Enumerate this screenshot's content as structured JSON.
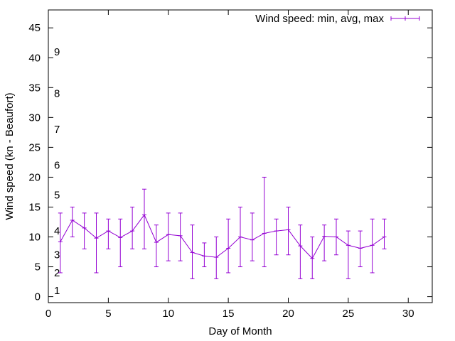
{
  "chart_data": {
    "type": "line",
    "xlabel": "Day of Month",
    "ylabel": "Wind speed (kn - Beaufort)",
    "xlim": [
      0,
      32
    ],
    "ylim": [
      -1,
      48
    ],
    "xticks": [
      0,
      5,
      10,
      15,
      20,
      25,
      30
    ],
    "yticks": [
      0,
      5,
      10,
      15,
      20,
      25,
      30,
      35,
      40,
      45
    ],
    "beaufort_labels": [
      {
        "label": "1",
        "y": 1
      },
      {
        "label": "2",
        "y": 4
      },
      {
        "label": "3",
        "y": 7
      },
      {
        "label": "4",
        "y": 11
      },
      {
        "label": "5",
        "y": 17
      },
      {
        "label": "6",
        "y": 22
      },
      {
        "label": "7",
        "y": 28
      },
      {
        "label": "8",
        "y": 34
      },
      {
        "label": "9",
        "y": 41
      }
    ],
    "legend_position": "top-right",
    "colors": {
      "series": "#9400d3",
      "axis": "#000000"
    },
    "series": [
      {
        "name": "Wind speed: min, avg, max",
        "x": [
          1,
          2,
          3,
          4,
          5,
          6,
          7,
          8,
          9,
          10,
          11,
          12,
          13,
          14,
          15,
          16,
          17,
          18,
          19,
          20,
          21,
          22,
          23,
          24,
          25,
          26,
          27,
          28
        ],
        "avg": [
          9.2,
          12.8,
          11.5,
          9.8,
          11.0,
          9.9,
          11.0,
          13.7,
          9.1,
          10.4,
          10.2,
          7.4,
          6.8,
          6.6,
          8.1,
          10.0,
          9.5,
          10.6,
          11.0,
          11.2,
          8.5,
          6.4,
          10.1,
          10.0,
          8.6,
          8.1,
          8.6,
          10.0
        ],
        "min": [
          4,
          10,
          8,
          4,
          8,
          5,
          8,
          8,
          5,
          6,
          6,
          3,
          5,
          3,
          4,
          5,
          6,
          5,
          7,
          7,
          3,
          3,
          6,
          7,
          3,
          5,
          4,
          8
        ],
        "max": [
          14,
          15,
          14,
          14,
          13,
          13,
          15,
          18,
          12,
          14,
          14,
          12,
          9,
          10,
          13,
          15,
          14,
          20,
          13,
          15,
          12,
          10,
          12,
          13,
          11,
          11,
          13,
          13
        ]
      }
    ]
  }
}
